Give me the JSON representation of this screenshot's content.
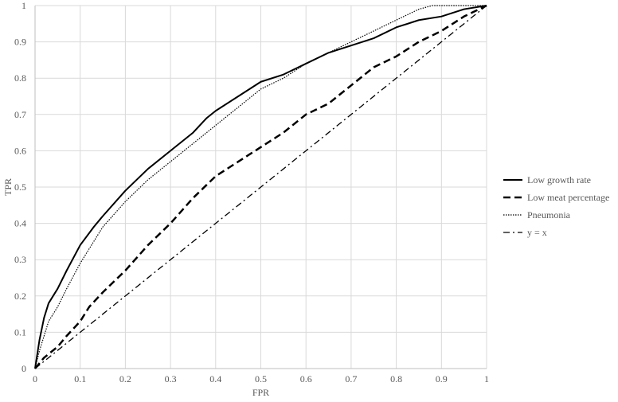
{
  "chart_data": {
    "type": "line",
    "title": "",
    "xlabel": "FPR",
    "ylabel": "TPR",
    "xlim": [
      0,
      1
    ],
    "ylim": [
      0,
      1
    ],
    "x_ticks": [
      "0",
      "0.1",
      "0.2",
      "0.3",
      "0.4",
      "0.5",
      "0.6",
      "0.7",
      "0.8",
      "0.9",
      "1"
    ],
    "y_ticks": [
      "0",
      "0.1",
      "0.2",
      "0.3",
      "0.4",
      "0.5",
      "0.6",
      "0.7",
      "0.8",
      "0.9",
      "1"
    ],
    "grid": "both",
    "legend_position": "right",
    "series": [
      {
        "name": "Low growth rate",
        "style": "solid",
        "color": "#000000",
        "x": [
          0,
          0.01,
          0.02,
          0.03,
          0.05,
          0.07,
          0.1,
          0.13,
          0.15,
          0.2,
          0.25,
          0.3,
          0.35,
          0.38,
          0.4,
          0.45,
          0.5,
          0.55,
          0.6,
          0.65,
          0.7,
          0.75,
          0.8,
          0.85,
          0.9,
          0.95,
          1
        ],
        "y": [
          0,
          0.08,
          0.14,
          0.18,
          0.22,
          0.27,
          0.34,
          0.39,
          0.42,
          0.49,
          0.55,
          0.6,
          0.65,
          0.69,
          0.71,
          0.75,
          0.79,
          0.81,
          0.84,
          0.87,
          0.89,
          0.91,
          0.94,
          0.96,
          0.97,
          0.99,
          1
        ]
      },
      {
        "name": "Low meat percentage",
        "style": "dashed",
        "color": "#000000",
        "x": [
          0,
          0.02,
          0.05,
          0.07,
          0.1,
          0.12,
          0.15,
          0.2,
          0.25,
          0.3,
          0.35,
          0.4,
          0.45,
          0.5,
          0.55,
          0.6,
          0.65,
          0.7,
          0.75,
          0.8,
          0.85,
          0.9,
          0.95,
          1
        ],
        "y": [
          0,
          0.03,
          0.06,
          0.09,
          0.13,
          0.17,
          0.21,
          0.27,
          0.34,
          0.4,
          0.47,
          0.53,
          0.57,
          0.61,
          0.65,
          0.7,
          0.73,
          0.78,
          0.83,
          0.86,
          0.9,
          0.93,
          0.97,
          1
        ]
      },
      {
        "name": "Pneumonia",
        "style": "dotted",
        "color": "#000000",
        "x": [
          0,
          0.01,
          0.02,
          0.03,
          0.05,
          0.07,
          0.1,
          0.15,
          0.2,
          0.25,
          0.3,
          0.35,
          0.4,
          0.45,
          0.5,
          0.55,
          0.6,
          0.65,
          0.7,
          0.75,
          0.8,
          0.85,
          0.88,
          0.9,
          1
        ],
        "y": [
          0,
          0.05,
          0.09,
          0.13,
          0.17,
          0.22,
          0.29,
          0.39,
          0.46,
          0.52,
          0.57,
          0.62,
          0.67,
          0.72,
          0.77,
          0.8,
          0.84,
          0.87,
          0.9,
          0.93,
          0.96,
          0.99,
          1,
          1,
          1
        ]
      },
      {
        "name": "y = x",
        "style": "dash-dot",
        "color": "#000000",
        "x": [
          0,
          1
        ],
        "y": [
          0,
          1
        ]
      }
    ]
  }
}
